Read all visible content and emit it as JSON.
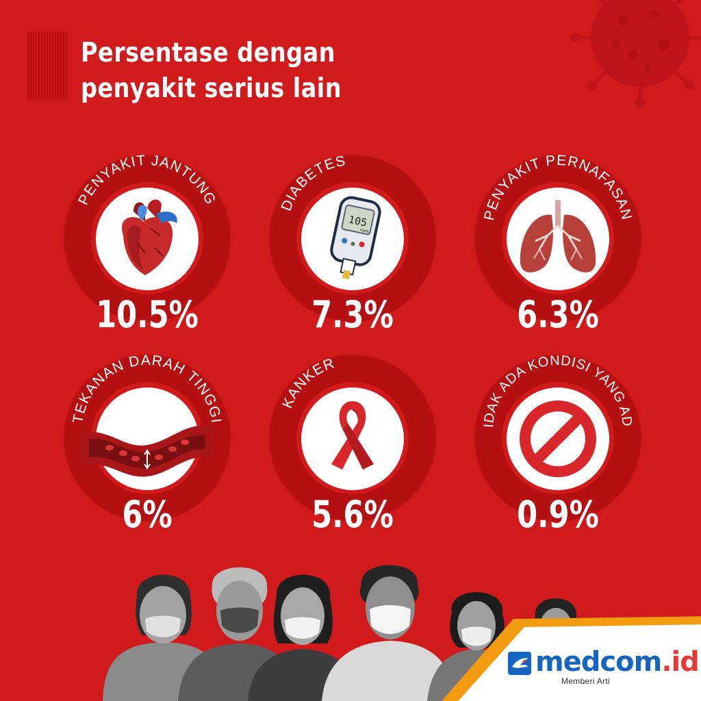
{
  "title_lines": [
    "Persentase dengan",
    "penyakit serius lain"
  ],
  "items": [
    {
      "label": "PENYAKIT JANTUNG",
      "value": "10.5%",
      "icon": "heart-icon"
    },
    {
      "label": "DIABETES",
      "value": "7.3%",
      "icon": "glucose-meter-icon",
      "meter_reading": "105",
      "meter_unit": "mg/dL"
    },
    {
      "label": "PENYAKIT PERNAFASAN",
      "value": "6.3%",
      "icon": "lungs-icon"
    },
    {
      "label": "TEKANAN DARAH TINGGI",
      "value": "6%",
      "icon": "blood-vessel-icon"
    },
    {
      "label": "KANKER",
      "value": "5.6%",
      "icon": "awareness-ribbon-icon"
    },
    {
      "label": "TIDAK ADA KONDISI YANG ADA",
      "value": "0.9%",
      "icon": "prohibited-icon"
    }
  ],
  "logo": {
    "brand": "medcom",
    "suffix": ".id",
    "tagline": "Memberi Arti"
  },
  "colors": {
    "background": "#d11a1c",
    "ring": "#b01012",
    "text": "#ffffff",
    "logo_blue": "#1565c0",
    "logo_red": "#e53935",
    "band_orange": "#f39c12"
  }
}
